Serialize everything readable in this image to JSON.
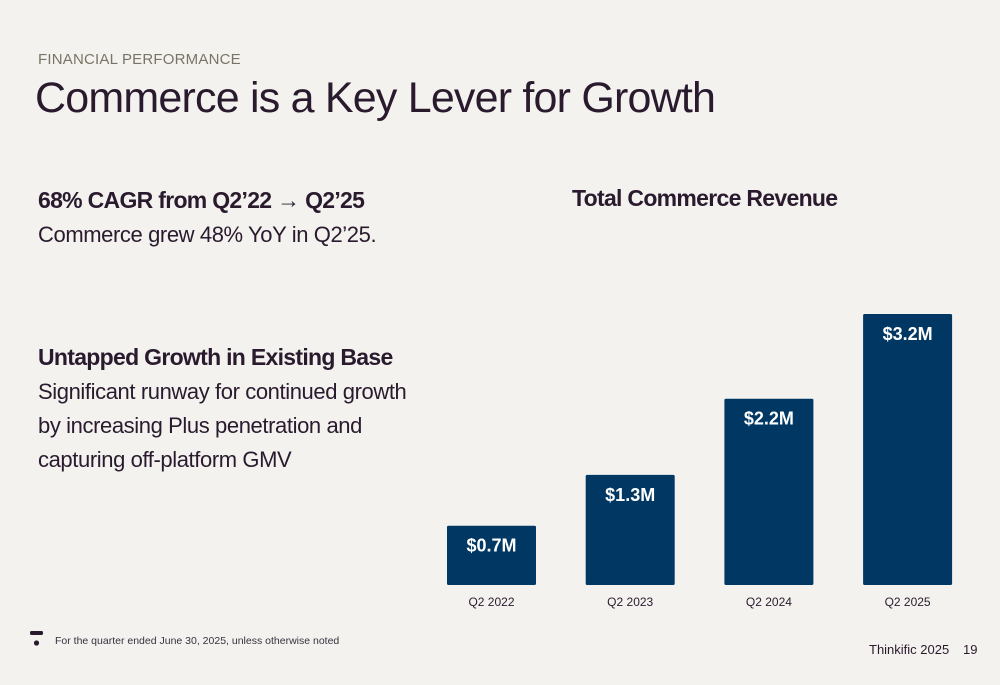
{
  "header": {
    "eyebrow": "FINANCIAL PERFORMANCE",
    "title": "Commerce is a Key Lever for Growth"
  },
  "highlights": [
    {
      "heading": "68% CAGR from Q2’22 → Q2’25",
      "body": "Commerce grew 48% YoY in Q2’25."
    },
    {
      "heading": "Untapped Growth in Existing Base",
      "body": "Significant runway for continued growth by increasing Plus penetration and capturing off-platform GMV"
    }
  ],
  "chart_data": {
    "type": "bar",
    "title": "Total Commerce Revenue",
    "categories": [
      "Q2 2022",
      "Q2 2023",
      "Q2 2024",
      "Q2 2025"
    ],
    "values": [
      0.7,
      1.3,
      2.2,
      3.2
    ],
    "data_labels": [
      "$0.7M",
      "$1.3M",
      "$2.2M",
      "$3.2M"
    ],
    "ylabel": "",
    "xlabel": "",
    "unit": "$M",
    "ylim": [
      0,
      3.2
    ],
    "grid": false,
    "legend": "none",
    "bar_color": "#003863"
  },
  "footer": {
    "note": "For the quarter ended June 30, 2025, unless otherwise noted",
    "brand": "Thinkific 2025",
    "page": "19",
    "logo_icon": "thinkific-logo-icon"
  }
}
